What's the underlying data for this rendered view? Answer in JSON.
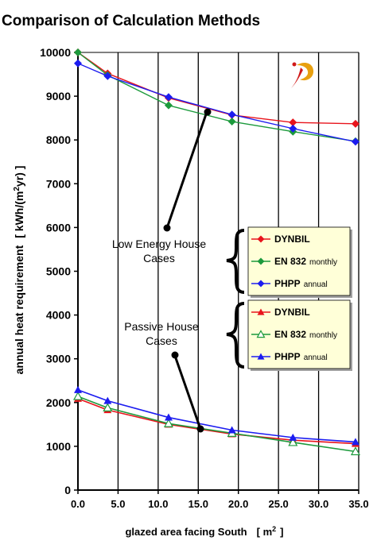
{
  "chart_data": {
    "type": "line",
    "title": "Comparison of Calculation Methods",
    "xlabel_main": "glazed area facing South",
    "xlabel_unit_pre": "[ m",
    "xlabel_unit_sup": "2",
    "xlabel_unit_post": "]",
    "ylabel_main": "annual heat requirement",
    "ylabel_unit_pre": "[ kWh/(m",
    "ylabel_unit_sup": "2",
    "ylabel_unit_post": "yr) ]",
    "xlim": [
      0,
      35
    ],
    "ylim": [
      0,
      10000
    ],
    "x_ticks": [
      "0.0",
      "5.0",
      "10.0",
      "15.0",
      "20.0",
      "25.0",
      "30.0",
      "35.0"
    ],
    "x_tick_values": [
      0,
      5,
      10,
      15,
      20,
      25,
      30,
      35
    ],
    "y_ticks": [
      "0",
      "1000",
      "2000",
      "3000",
      "4000",
      "5000",
      "6000",
      "7000",
      "8000",
      "9000",
      "10000"
    ],
    "y_tick_values": [
      0,
      1000,
      2000,
      3000,
      4000,
      5000,
      6000,
      7000,
      8000,
      9000,
      10000
    ],
    "grid": "vertical",
    "legend_position": "right",
    "colors": {
      "dynbil": "#e8141c",
      "en832": "#1c9a3c",
      "phpp": "#1c1cf0",
      "legend_bg": "#ffffd8",
      "arrow": "#000000"
    },
    "series": [
      {
        "name": "DYNBIL",
        "group": "low",
        "color_key": "dynbil",
        "marker": "diamond",
        "x": [
          0,
          3.7,
          11.3,
          19.2,
          26.8,
          34.6
        ],
        "y": [
          10000,
          9520,
          8960,
          8570,
          8400,
          8370
        ]
      },
      {
        "name": "EN 832",
        "group": "low",
        "color_key": "en832",
        "marker": "diamond",
        "x": [
          0,
          3.7,
          11.3,
          19.2,
          26.8,
          34.6
        ],
        "y": [
          10000,
          9480,
          8790,
          8420,
          8190,
          7970
        ]
      },
      {
        "name": "PHPP",
        "group": "low",
        "color_key": "phpp",
        "marker": "diamond",
        "x": [
          0,
          3.7,
          11.3,
          19.2,
          26.8,
          34.6
        ],
        "y": [
          9750,
          9460,
          8980,
          8580,
          8260,
          7960
        ]
      },
      {
        "name": "DYNBIL",
        "group": "passive",
        "color_key": "dynbil",
        "marker": "triangle",
        "x": [
          0,
          3.7,
          11.3,
          19.2,
          26.8,
          34.6
        ],
        "y": [
          2090,
          1830,
          1500,
          1280,
          1140,
          1060
        ]
      },
      {
        "name": "EN 832",
        "group": "passive",
        "color_key": "en832",
        "marker": "triangle-open",
        "x": [
          0,
          3.7,
          11.3,
          19.2,
          26.8,
          34.6
        ],
        "y": [
          2140,
          1880,
          1520,
          1300,
          1090,
          880
        ]
      },
      {
        "name": "PHPP",
        "group": "passive",
        "color_key": "phpp",
        "marker": "triangle",
        "x": [
          0,
          3.7,
          11.3,
          19.2,
          26.8,
          34.6
        ],
        "y": [
          2290,
          2040,
          1660,
          1370,
          1200,
          1100
        ]
      }
    ],
    "legend": [
      {
        "name": "DYNBIL",
        "qualifier": "",
        "color_key": "dynbil",
        "marker": "diamond"
      },
      {
        "name": "EN 832",
        "qualifier": "monthly",
        "color_key": "en832",
        "marker": "diamond"
      },
      {
        "name": "PHPP",
        "qualifier": "annual",
        "color_key": "phpp",
        "marker": "diamond"
      },
      {
        "name": "DYNBIL",
        "qualifier": "",
        "color_key": "dynbil",
        "marker": "triangle"
      },
      {
        "name": "EN 832",
        "qualifier": "monthly",
        "color_key": "en832",
        "marker": "triangle-open"
      },
      {
        "name": "PHPP",
        "qualifier": "annual",
        "color_key": "phpp",
        "marker": "triangle"
      }
    ],
    "annotations": [
      {
        "id": "low",
        "lines": [
          "Low Energy House",
          "Cases"
        ],
        "point_x": 15.0,
        "point_y": 8600
      },
      {
        "id": "passive",
        "lines": [
          "Passive House",
          "Cases"
        ],
        "point_x": 15.0,
        "point_y": 1400
      }
    ]
  }
}
